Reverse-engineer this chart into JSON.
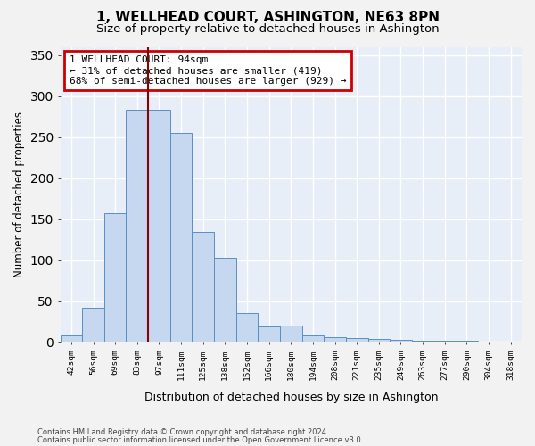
{
  "title": "1, WELLHEAD COURT, ASHINGTON, NE63 8PN",
  "subtitle": "Size of property relative to detached houses in Ashington",
  "xlabel": "Distribution of detached houses by size in Ashington",
  "ylabel": "Number of detached properties",
  "categories": [
    "42sqm",
    "56sqm",
    "69sqm",
    "83sqm",
    "97sqm",
    "111sqm",
    "125sqm",
    "138sqm",
    "152sqm",
    "166sqm",
    "180sqm",
    "194sqm",
    "208sqm",
    "221sqm",
    "235sqm",
    "249sqm",
    "263sqm",
    "277sqm",
    "290sqm",
    "304sqm",
    "318sqm"
  ],
  "values": [
    8,
    42,
    157,
    283,
    283,
    255,
    134,
    103,
    35,
    19,
    20,
    8,
    6,
    5,
    4,
    3,
    2,
    2,
    2,
    1,
    0
  ],
  "bar_color": "#c5d8f0",
  "bar_edge_color": "#5a8fc2",
  "vline_index": 4,
  "vline_color": "#8b0000",
  "annotation_line1": "1 WELLHEAD COURT: 94sqm",
  "annotation_line2": "← 31% of detached houses are smaller (419)",
  "annotation_line3": "68% of semi-detached houses are larger (929) →",
  "ylim": [
    0,
    360
  ],
  "yticks": [
    0,
    50,
    100,
    150,
    200,
    250,
    300,
    350
  ],
  "plot_bg": "#e8eef8",
  "fig_bg": "#f2f2f2",
  "grid_color": "#ffffff",
  "footer1": "Contains HM Land Registry data © Crown copyright and database right 2024.",
  "footer2": "Contains public sector information licensed under the Open Government Licence v3.0."
}
